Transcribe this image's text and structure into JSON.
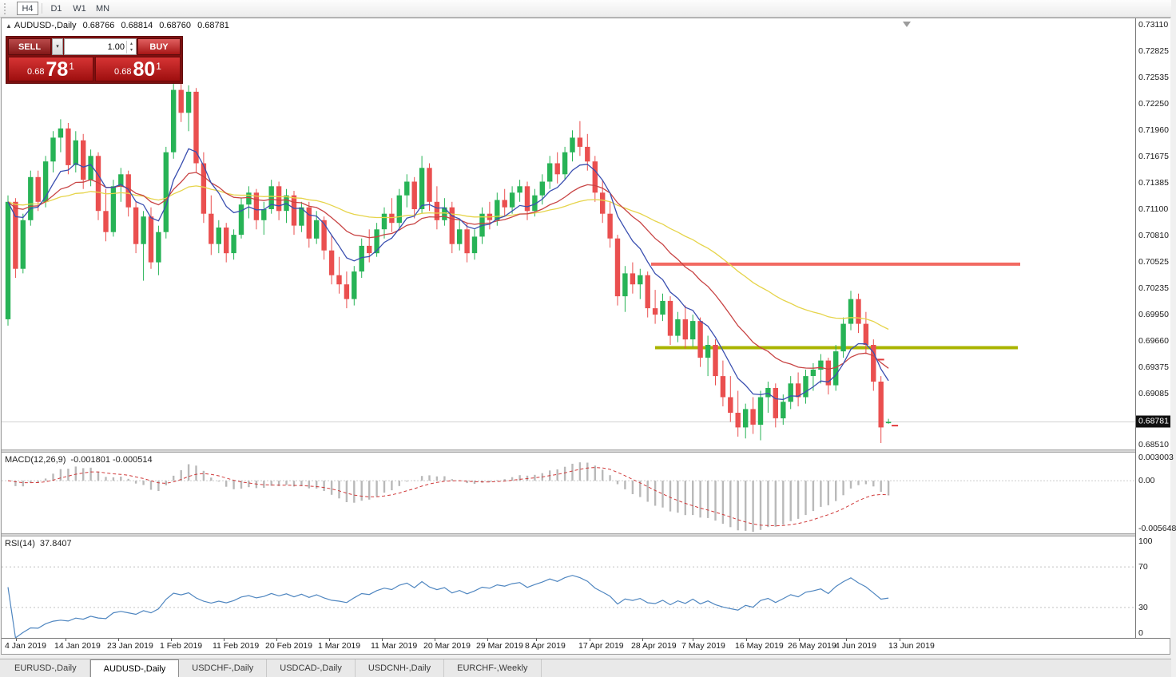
{
  "toolbar": {
    "timeframes": [
      "H4",
      "D1",
      "W1",
      "MN"
    ],
    "active_timeframe": "H4"
  },
  "icons": {
    "collapse": "▲",
    "dropdown": "▾",
    "spin_up": "▴",
    "spin_down": "▾"
  },
  "chart_header": {
    "title": "AUDUSD-,Daily",
    "open": "0.68766",
    "high": "0.68814",
    "low": "0.68760",
    "close": "0.68781"
  },
  "one_click": {
    "sell_label": "SELL",
    "buy_label": "BUY",
    "volume": "1.00",
    "sell_price": {
      "prefix": "0.68",
      "big": "78",
      "sup": "1"
    },
    "buy_price": {
      "prefix": "0.68",
      "big": "80",
      "sup": "1"
    }
  },
  "price_axis": {
    "labels": [
      "0.73110",
      "0.72825",
      "0.72535",
      "0.72250",
      "0.71960",
      "0.71675",
      "0.71385",
      "0.71100",
      "0.70810",
      "0.70525",
      "0.70235",
      "0.69950",
      "0.69660",
      "0.69375",
      "0.69085",
      "0.68510"
    ],
    "current_price": "0.68781"
  },
  "indicators": {
    "macd": {
      "label": "MACD(12,26,9)",
      "values": "-0.001801 -0.000514",
      "axis": [
        "0.003003",
        "0.00",
        "-0.005648"
      ],
      "fast": 12,
      "slow": 26,
      "signal": 9,
      "range_max": 0.003003,
      "range_min": -0.005648
    },
    "rsi": {
      "label": "RSI(14)",
      "value": "37.8407",
      "period": 14,
      "axis": [
        "100",
        "70",
        "30",
        "0"
      ],
      "levels": [
        70,
        30
      ]
    }
  },
  "tabs": [
    {
      "label": "EURUSD-,Daily",
      "active": false
    },
    {
      "label": "AUDUSD-,Daily",
      "active": true
    },
    {
      "label": "USDCHF-,Daily",
      "active": false
    },
    {
      "label": "USDCAD-,Daily",
      "active": false
    },
    {
      "label": "USDCNH-,Daily",
      "active": false
    },
    {
      "label": "EURCHF-,Weekly",
      "active": false
    }
  ],
  "colors": {
    "candle_up": "#27b356",
    "candle_down": "#ea4f4f",
    "macd_hist": "#b9b9b9",
    "macd_signal": "#d03a3a",
    "rsi": "#4f86c0",
    "hline_red": "#f26a62",
    "hline_olive": "#aab400"
  },
  "chart_data": {
    "type": "candlestick",
    "symbol": "AUDUSD",
    "timeframe": "Daily",
    "y_range": [
      0.6848,
      0.7318
    ],
    "current_price": 0.68781,
    "x_labels": [
      {
        "label": "4 Jan 2019",
        "x": 4
      },
      {
        "label": "14 Jan 2019",
        "x": 66
      },
      {
        "label": "23 Jan 2019",
        "x": 132
      },
      {
        "label": "1 Feb 2019",
        "x": 198
      },
      {
        "label": "11 Feb 2019",
        "x": 264
      },
      {
        "label": "20 Feb 2019",
        "x": 330
      },
      {
        "label": "1 Mar 2019",
        "x": 396
      },
      {
        "label": "11 Mar 2019",
        "x": 462
      },
      {
        "label": "20 Mar 2019",
        "x": 528
      },
      {
        "label": "29 Mar 2019",
        "x": 594
      },
      {
        "label": "8 Apr 2019",
        "x": 655
      },
      {
        "label": "17 Apr 2019",
        "x": 722
      },
      {
        "label": "28 Apr 2019",
        "x": 788
      },
      {
        "label": "7 May 2019",
        "x": 851
      },
      {
        "label": "16 May 2019",
        "x": 918
      },
      {
        "label": "26 May 2019",
        "x": 984
      },
      {
        "label": "4 Jun 2019",
        "x": 1043
      },
      {
        "label": "13 Jun 2019",
        "x": 1110
      }
    ],
    "moving_averages": [
      {
        "name": "slow",
        "period": 50,
        "color": "#e6d44a"
      },
      {
        "name": "medium",
        "period": 20,
        "color": "#c84444"
      },
      {
        "name": "fast",
        "period": 8,
        "color": "#3a4fb0"
      }
    ],
    "hlines": [
      {
        "price": 0.705,
        "x1": 813,
        "x2": 1275,
        "color": "#f26a62",
        "width": 4
      },
      {
        "price": 0.6959,
        "x1": 818,
        "x2": 1272,
        "color": "#aab400",
        "width": 4
      }
    ],
    "marks": [
      {
        "bar": 116,
        "price": 0.6946,
        "dx": 0
      },
      {
        "bar": 117,
        "price": 0.6874,
        "dx": 8
      }
    ],
    "candles": [
      [
        0.699,
        0.7125,
        0.6983,
        0.7118
      ],
      [
        0.7118,
        0.7122,
        0.7035,
        0.7045
      ],
      [
        0.7045,
        0.7105,
        0.704,
        0.7098
      ],
      [
        0.7098,
        0.7152,
        0.7092,
        0.7145
      ],
      [
        0.7145,
        0.7152,
        0.7108,
        0.7118
      ],
      [
        0.7118,
        0.7168,
        0.7112,
        0.7162
      ],
      [
        0.7162,
        0.7195,
        0.715,
        0.7188
      ],
      [
        0.7188,
        0.7208,
        0.7172,
        0.7198
      ],
      [
        0.7198,
        0.7204,
        0.7148,
        0.7158
      ],
      [
        0.7158,
        0.7195,
        0.715,
        0.7185
      ],
      [
        0.7185,
        0.7192,
        0.7132,
        0.7142
      ],
      [
        0.7142,
        0.7175,
        0.7135,
        0.7168
      ],
      [
        0.7168,
        0.7172,
        0.7098,
        0.7108
      ],
      [
        0.7108,
        0.7132,
        0.7075,
        0.7085
      ],
      [
        0.7085,
        0.7142,
        0.708,
        0.7135
      ],
      [
        0.7135,
        0.7155,
        0.7118,
        0.7148
      ],
      [
        0.7148,
        0.7152,
        0.7102,
        0.7112
      ],
      [
        0.7112,
        0.7118,
        0.7062,
        0.7072
      ],
      [
        0.7072,
        0.7108,
        0.7032,
        0.7102
      ],
      [
        0.7102,
        0.7112,
        0.7045,
        0.7052
      ],
      [
        0.7052,
        0.7092,
        0.7038,
        0.7085
      ],
      [
        0.7085,
        0.7178,
        0.7078,
        0.7172
      ],
      [
        0.7172,
        0.7248,
        0.7165,
        0.724
      ],
      [
        0.724,
        0.725,
        0.7205,
        0.7215
      ],
      [
        0.7215,
        0.7245,
        0.7195,
        0.7238
      ],
      [
        0.7238,
        0.7242,
        0.715,
        0.716
      ],
      [
        0.716,
        0.7172,
        0.7095,
        0.7105
      ],
      [
        0.7105,
        0.7125,
        0.706,
        0.7072
      ],
      [
        0.7072,
        0.7098,
        0.7062,
        0.709
      ],
      [
        0.709,
        0.7095,
        0.7052,
        0.7062
      ],
      [
        0.7062,
        0.7088,
        0.7055,
        0.7082
      ],
      [
        0.7082,
        0.7122,
        0.7078,
        0.7115
      ],
      [
        0.7115,
        0.7135,
        0.71,
        0.7128
      ],
      [
        0.7128,
        0.7132,
        0.7088,
        0.7098
      ],
      [
        0.7098,
        0.7118,
        0.7082,
        0.711
      ],
      [
        0.711,
        0.7142,
        0.7105,
        0.7135
      ],
      [
        0.7135,
        0.714,
        0.7098,
        0.7108
      ],
      [
        0.7108,
        0.7132,
        0.7095,
        0.7125
      ],
      [
        0.7125,
        0.713,
        0.7082,
        0.7092
      ],
      [
        0.7092,
        0.7118,
        0.7085,
        0.7112
      ],
      [
        0.7112,
        0.7118,
        0.7068,
        0.7078
      ],
      [
        0.7078,
        0.7108,
        0.7072,
        0.7098
      ],
      [
        0.7098,
        0.7102,
        0.7055,
        0.7065
      ],
      [
        0.7065,
        0.7082,
        0.7028,
        0.7038
      ],
      [
        0.7038,
        0.7058,
        0.7018,
        0.7028
      ],
      [
        0.7028,
        0.7042,
        0.7002,
        0.7012
      ],
      [
        0.7012,
        0.7048,
        0.7005,
        0.7042
      ],
      [
        0.7042,
        0.7078,
        0.7035,
        0.707
      ],
      [
        0.707,
        0.7088,
        0.7052,
        0.7062
      ],
      [
        0.7062,
        0.7095,
        0.7058,
        0.7088
      ],
      [
        0.7088,
        0.7112,
        0.7078,
        0.7105
      ],
      [
        0.7105,
        0.7122,
        0.7085,
        0.7095
      ],
      [
        0.7095,
        0.7132,
        0.709,
        0.7125
      ],
      [
        0.7125,
        0.7148,
        0.7112,
        0.714
      ],
      [
        0.714,
        0.7145,
        0.71,
        0.711
      ],
      [
        0.711,
        0.7168,
        0.7105,
        0.7155
      ],
      [
        0.7155,
        0.716,
        0.7108,
        0.7118
      ],
      [
        0.7118,
        0.7135,
        0.7088,
        0.7098
      ],
      [
        0.7098,
        0.7122,
        0.7092,
        0.7112
      ],
      [
        0.7112,
        0.7118,
        0.7062,
        0.7072
      ],
      [
        0.7072,
        0.7098,
        0.7065,
        0.7088
      ],
      [
        0.7088,
        0.7095,
        0.7052,
        0.7062
      ],
      [
        0.7062,
        0.7088,
        0.7055,
        0.708
      ],
      [
        0.708,
        0.7112,
        0.7072,
        0.7105
      ],
      [
        0.7105,
        0.7118,
        0.7088,
        0.7098
      ],
      [
        0.7098,
        0.7128,
        0.7092,
        0.712
      ],
      [
        0.712,
        0.7132,
        0.7102,
        0.7112
      ],
      [
        0.7112,
        0.7135,
        0.7105,
        0.7128
      ],
      [
        0.7128,
        0.7142,
        0.7118,
        0.7135
      ],
      [
        0.7135,
        0.714,
        0.7098,
        0.7108
      ],
      [
        0.7108,
        0.7132,
        0.7102,
        0.7125
      ],
      [
        0.7125,
        0.7148,
        0.7115,
        0.714
      ],
      [
        0.714,
        0.7168,
        0.7132,
        0.716
      ],
      [
        0.716,
        0.7172,
        0.7138,
        0.7148
      ],
      [
        0.7148,
        0.7178,
        0.7142,
        0.7172
      ],
      [
        0.7172,
        0.7196,
        0.7162,
        0.7188
      ],
      [
        0.7188,
        0.7206,
        0.7168,
        0.7178
      ],
      [
        0.7178,
        0.7192,
        0.7152,
        0.7162
      ],
      [
        0.7162,
        0.7168,
        0.7118,
        0.7128
      ],
      [
        0.7128,
        0.7142,
        0.7095,
        0.7105
      ],
      [
        0.7105,
        0.7118,
        0.7068,
        0.7078
      ],
      [
        0.7078,
        0.7082,
        0.7005,
        0.7015
      ],
      [
        0.7015,
        0.7048,
        0.6998,
        0.704
      ],
      [
        0.704,
        0.7052,
        0.7018,
        0.7028
      ],
      [
        0.7028,
        0.7045,
        0.7012,
        0.7038
      ],
      [
        0.7038,
        0.7042,
        0.6992,
        0.7002
      ],
      [
        0.7002,
        0.7022,
        0.6985,
        0.6995
      ],
      [
        0.6995,
        0.7018,
        0.6988,
        0.701
      ],
      [
        0.701,
        0.7015,
        0.6962,
        0.6972
      ],
      [
        0.6972,
        0.6998,
        0.6965,
        0.699
      ],
      [
        0.699,
        0.7005,
        0.6958,
        0.6968
      ],
      [
        0.6968,
        0.6995,
        0.696,
        0.6988
      ],
      [
        0.6988,
        0.6992,
        0.6938,
        0.6948
      ],
      [
        0.6948,
        0.6972,
        0.6928,
        0.6962
      ],
      [
        0.6962,
        0.6968,
        0.6918,
        0.6928
      ],
      [
        0.6928,
        0.6945,
        0.6895,
        0.6905
      ],
      [
        0.6905,
        0.6928,
        0.6878,
        0.6888
      ],
      [
        0.6888,
        0.6912,
        0.6862,
        0.6872
      ],
      [
        0.6872,
        0.6898,
        0.686,
        0.6892
      ],
      [
        0.6892,
        0.6905,
        0.6865,
        0.6875
      ],
      [
        0.6875,
        0.6912,
        0.6858,
        0.6905
      ],
      [
        0.6905,
        0.6922,
        0.6888,
        0.6915
      ],
      [
        0.6915,
        0.692,
        0.6872,
        0.6882
      ],
      [
        0.6882,
        0.6908,
        0.6875,
        0.69
      ],
      [
        0.69,
        0.6928,
        0.6892,
        0.692
      ],
      [
        0.692,
        0.6932,
        0.6895,
        0.6905
      ],
      [
        0.6905,
        0.6935,
        0.6898,
        0.6928
      ],
      [
        0.6928,
        0.6942,
        0.6912,
        0.6935
      ],
      [
        0.6935,
        0.6952,
        0.692,
        0.6945
      ],
      [
        0.6945,
        0.6948,
        0.6908,
        0.6918
      ],
      [
        0.6918,
        0.6962,
        0.6912,
        0.6955
      ],
      [
        0.6955,
        0.6992,
        0.6948,
        0.6985
      ],
      [
        0.6985,
        0.7021,
        0.6978,
        0.7012
      ],
      [
        0.7012,
        0.7018,
        0.6975,
        0.6985
      ],
      [
        0.6985,
        0.6998,
        0.6952,
        0.6962
      ],
      [
        0.6962,
        0.6968,
        0.6912,
        0.6922
      ],
      [
        0.6922,
        0.6928,
        0.6855,
        0.6872
      ],
      [
        0.68766,
        0.68814,
        0.6876,
        0.68781
      ]
    ]
  }
}
